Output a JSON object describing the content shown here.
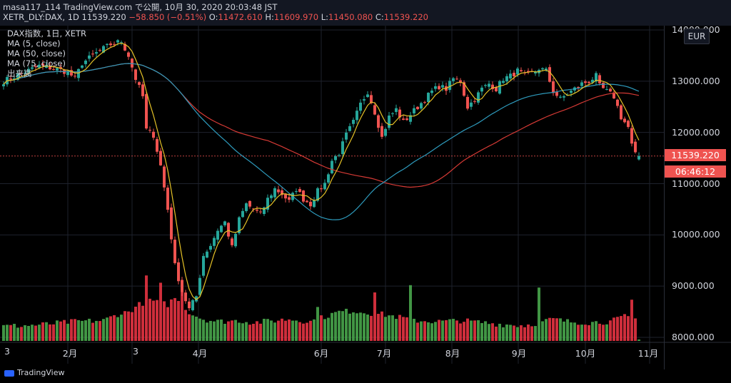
{
  "header": {
    "publisher_line": "masa117_114 TradingView.com で公開, 10月 30, 2020 20:03:48 JST",
    "symbol": "XETR_DLY:DAX, 1D 11539.220",
    "change": "−58.850 (−0.51%)",
    "o_label": "O:",
    "o_value": "11472.610",
    "h_label": "H:",
    "h_value": "11609.970",
    "l_label": "L:",
    "l_value": "11450.080",
    "c_label": "C:",
    "c_value": "11539.220"
  },
  "legend": {
    "title": "DAX指数, 1日, XETR",
    "ma5": "MA (5, close)",
    "ma50": "MA (50, close)",
    "ma75": "MA (75, close)",
    "volume": "出来高"
  },
  "currency_button": "EUR",
  "price_label": "11539.220",
  "countdown_label": "06:46:12",
  "branding": "TradingView",
  "colors": {
    "up": "#26a69a",
    "down": "#ef5350",
    "vol_up": "#4caf50",
    "vol_down": "#f23645",
    "ma5": "#e5c227",
    "ma50": "#2e9bbd",
    "ma75": "#d63a35",
    "background": "#000000",
    "grid": "#1e222d"
  },
  "chart_data": {
    "type": "candlestick",
    "symbol": "XETR_DLY:DAX",
    "interval": "1D",
    "y_ticks": [
      "14000.000",
      "13000.000",
      "12000.000",
      "11000.000",
      "10000.000",
      "9000.000",
      "8000.000"
    ],
    "ylim": [
      7950,
      14100
    ],
    "x_tick_labels": [
      "3",
      "2月",
      "3",
      "4月",
      "6月",
      "7月",
      "8月",
      "9月",
      "10月",
      "11月"
    ],
    "last_close": 11539.22,
    "series": [
      {
        "name": "MA (5, close)",
        "values": []
      },
      {
        "name": "MA (50, close)",
        "values": []
      },
      {
        "name": "MA (75, close)",
        "values": []
      }
    ],
    "anchors_close": [
      [
        0,
        13000
      ],
      [
        5,
        13150
      ],
      [
        10,
        13300
      ],
      [
        14,
        13250
      ],
      [
        18,
        13180
      ],
      [
        20,
        13050
      ],
      [
        22,
        13350
      ],
      [
        26,
        13550
      ],
      [
        30,
        13720
      ],
      [
        33,
        13780
      ],
      [
        35,
        13500
      ],
      [
        37,
        13050
      ],
      [
        39,
        12700
      ],
      [
        40,
        12050
      ],
      [
        42,
        11950
      ],
      [
        44,
        11350
      ],
      [
        46,
        10500
      ],
      [
        48,
        9400
      ],
      [
        50,
        8900
      ],
      [
        52,
        8550
      ],
      [
        54,
        8800
      ],
      [
        56,
        9600
      ],
      [
        58,
        9800
      ],
      [
        60,
        10100
      ],
      [
        62,
        10250
      ],
      [
        64,
        9750
      ],
      [
        66,
        10300
      ],
      [
        68,
        10600
      ],
      [
        70,
        10500
      ],
      [
        72,
        10400
      ],
      [
        74,
        10700
      ],
      [
        76,
        10900
      ],
      [
        78,
        10800
      ],
      [
        80,
        10650
      ],
      [
        82,
        10900
      ],
      [
        84,
        10700
      ],
      [
        86,
        10600
      ],
      [
        88,
        10850
      ],
      [
        90,
        11000
      ],
      [
        92,
        11450
      ],
      [
        94,
        11600
      ],
      [
        96,
        11950
      ],
      [
        98,
        12200
      ],
      [
        100,
        12550
      ],
      [
        102,
        12800
      ],
      [
        104,
        12400
      ],
      [
        106,
        11900
      ],
      [
        108,
        12300
      ],
      [
        110,
        12450
      ],
      [
        112,
        12200
      ],
      [
        114,
        12350
      ],
      [
        116,
        12500
      ],
      [
        118,
        12650
      ],
      [
        120,
        12800
      ],
      [
        122,
        12900
      ],
      [
        124,
        12850
      ],
      [
        126,
        13050
      ],
      [
        128,
        13000
      ],
      [
        130,
        12500
      ],
      [
        132,
        12650
      ],
      [
        134,
        12850
      ],
      [
        136,
        12950
      ],
      [
        138,
        12850
      ],
      [
        140,
        13050
      ],
      [
        142,
        13100
      ],
      [
        144,
        13200
      ],
      [
        146,
        13100
      ],
      [
        148,
        13150
      ],
      [
        150,
        13250
      ],
      [
        152,
        13200
      ],
      [
        154,
        12800
      ],
      [
        156,
        12650
      ],
      [
        158,
        12750
      ],
      [
        160,
        12850
      ],
      [
        162,
        12950
      ],
      [
        164,
        13000
      ],
      [
        166,
        13100
      ],
      [
        167,
        12900
      ],
      [
        169,
        12800
      ],
      [
        171,
        12700
      ],
      [
        173,
        12300
      ],
      [
        175,
        12100
      ],
      [
        176,
        11750
      ],
      [
        177,
        11560
      ],
      [
        178,
        11539.22
      ]
    ],
    "anchors_volume": [
      [
        0,
        0.3
      ],
      [
        10,
        0.33
      ],
      [
        20,
        0.4
      ],
      [
        28,
        0.42
      ],
      [
        32,
        0.55
      ],
      [
        35,
        0.6
      ],
      [
        38,
        0.75
      ],
      [
        41,
        0.85
      ],
      [
        43,
        0.8
      ],
      [
        46,
        0.75
      ],
      [
        48,
        0.9
      ],
      [
        50,
        0.7
      ],
      [
        53,
        0.55
      ],
      [
        56,
        0.45
      ],
      [
        60,
        0.4
      ],
      [
        66,
        0.42
      ],
      [
        70,
        0.38
      ],
      [
        76,
        0.42
      ],
      [
        80,
        0.45
      ],
      [
        86,
        0.4
      ],
      [
        90,
        0.5
      ],
      [
        94,
        0.6
      ],
      [
        98,
        0.62
      ],
      [
        102,
        0.58
      ],
      [
        106,
        0.55
      ],
      [
        110,
        0.5
      ],
      [
        116,
        0.42
      ],
      [
        122,
        0.4
      ],
      [
        128,
        0.42
      ],
      [
        134,
        0.38
      ],
      [
        140,
        0.34
      ],
      [
        146,
        0.32
      ],
      [
        150,
        0.38
      ],
      [
        154,
        0.45
      ],
      [
        158,
        0.4
      ],
      [
        164,
        0.38
      ],
      [
        170,
        0.4
      ],
      [
        174,
        0.5
      ],
      [
        177,
        0.45
      ],
      [
        178,
        0.08
      ]
    ],
    "volume_spikes": [
      [
        40,
        1.35
      ],
      [
        44,
        1.2
      ],
      [
        50,
        1.15
      ],
      [
        88,
        0.7
      ],
      [
        104,
        1.0
      ],
      [
        114,
        1.15
      ],
      [
        150,
        1.1
      ],
      [
        176,
        0.85
      ]
    ]
  }
}
